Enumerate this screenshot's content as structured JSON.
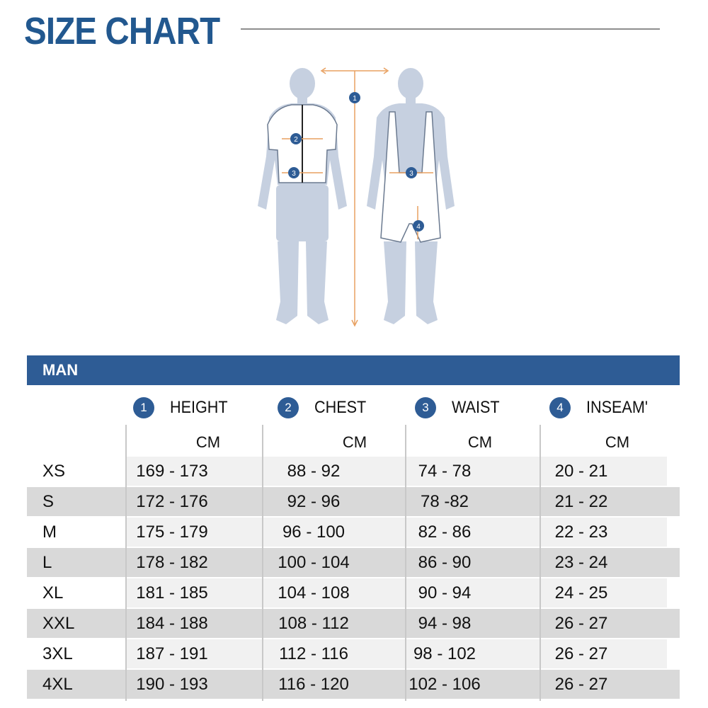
{
  "title": "SIZE CHART",
  "figure": {
    "markers": [
      "1",
      "2",
      "3",
      "3",
      "4"
    ]
  },
  "section": {
    "label": "MAN"
  },
  "columns": [
    {
      "badge": "1",
      "label": "HEIGHT",
      "unit": "CM"
    },
    {
      "badge": "2",
      "label": "CHEST",
      "unit": "CM"
    },
    {
      "badge": "3",
      "label": "WAIST",
      "unit": "CM"
    },
    {
      "badge": "4",
      "label": "INSEAM'",
      "unit": "CM"
    }
  ],
  "rows": [
    {
      "size": "XS",
      "height": "169 - 173",
      "chest": "88 - 92",
      "waist": "74 - 78",
      "inseam": "20 - 21"
    },
    {
      "size": "S",
      "height": "172 - 176",
      "chest": "92 - 96",
      "waist": "78 -82",
      "inseam": "21 - 22"
    },
    {
      "size": "M",
      "height": "175 - 179",
      "chest": "96 - 100",
      "waist": "82 - 86",
      "inseam": "22 - 23"
    },
    {
      "size": "L",
      "height": "178 - 182",
      "chest": "100 - 104",
      "waist": "86 - 90",
      "inseam": "23 - 24"
    },
    {
      "size": "XL",
      "height": "181 - 185",
      "chest": "104 - 108",
      "waist": "90 - 94",
      "inseam": "24 - 25"
    },
    {
      "size": "XXL",
      "height": "184 - 188",
      "chest": "108 - 112",
      "waist": "94 - 98",
      "inseam": "26 - 27"
    },
    {
      "size": "3XL",
      "height": "187 - 191",
      "chest": "112 - 116",
      "waist": "98 - 102",
      "inseam": "26 - 27"
    },
    {
      "size": "4XL",
      "height": "190 - 193",
      "chest": "116 - 120",
      "waist": "102 - 106",
      "inseam": "26 - 27"
    }
  ],
  "colors": {
    "brand": "#2e5c95",
    "title": "#22588f",
    "silhouette": "#c6d0e0",
    "arrow": "#e8a060"
  }
}
